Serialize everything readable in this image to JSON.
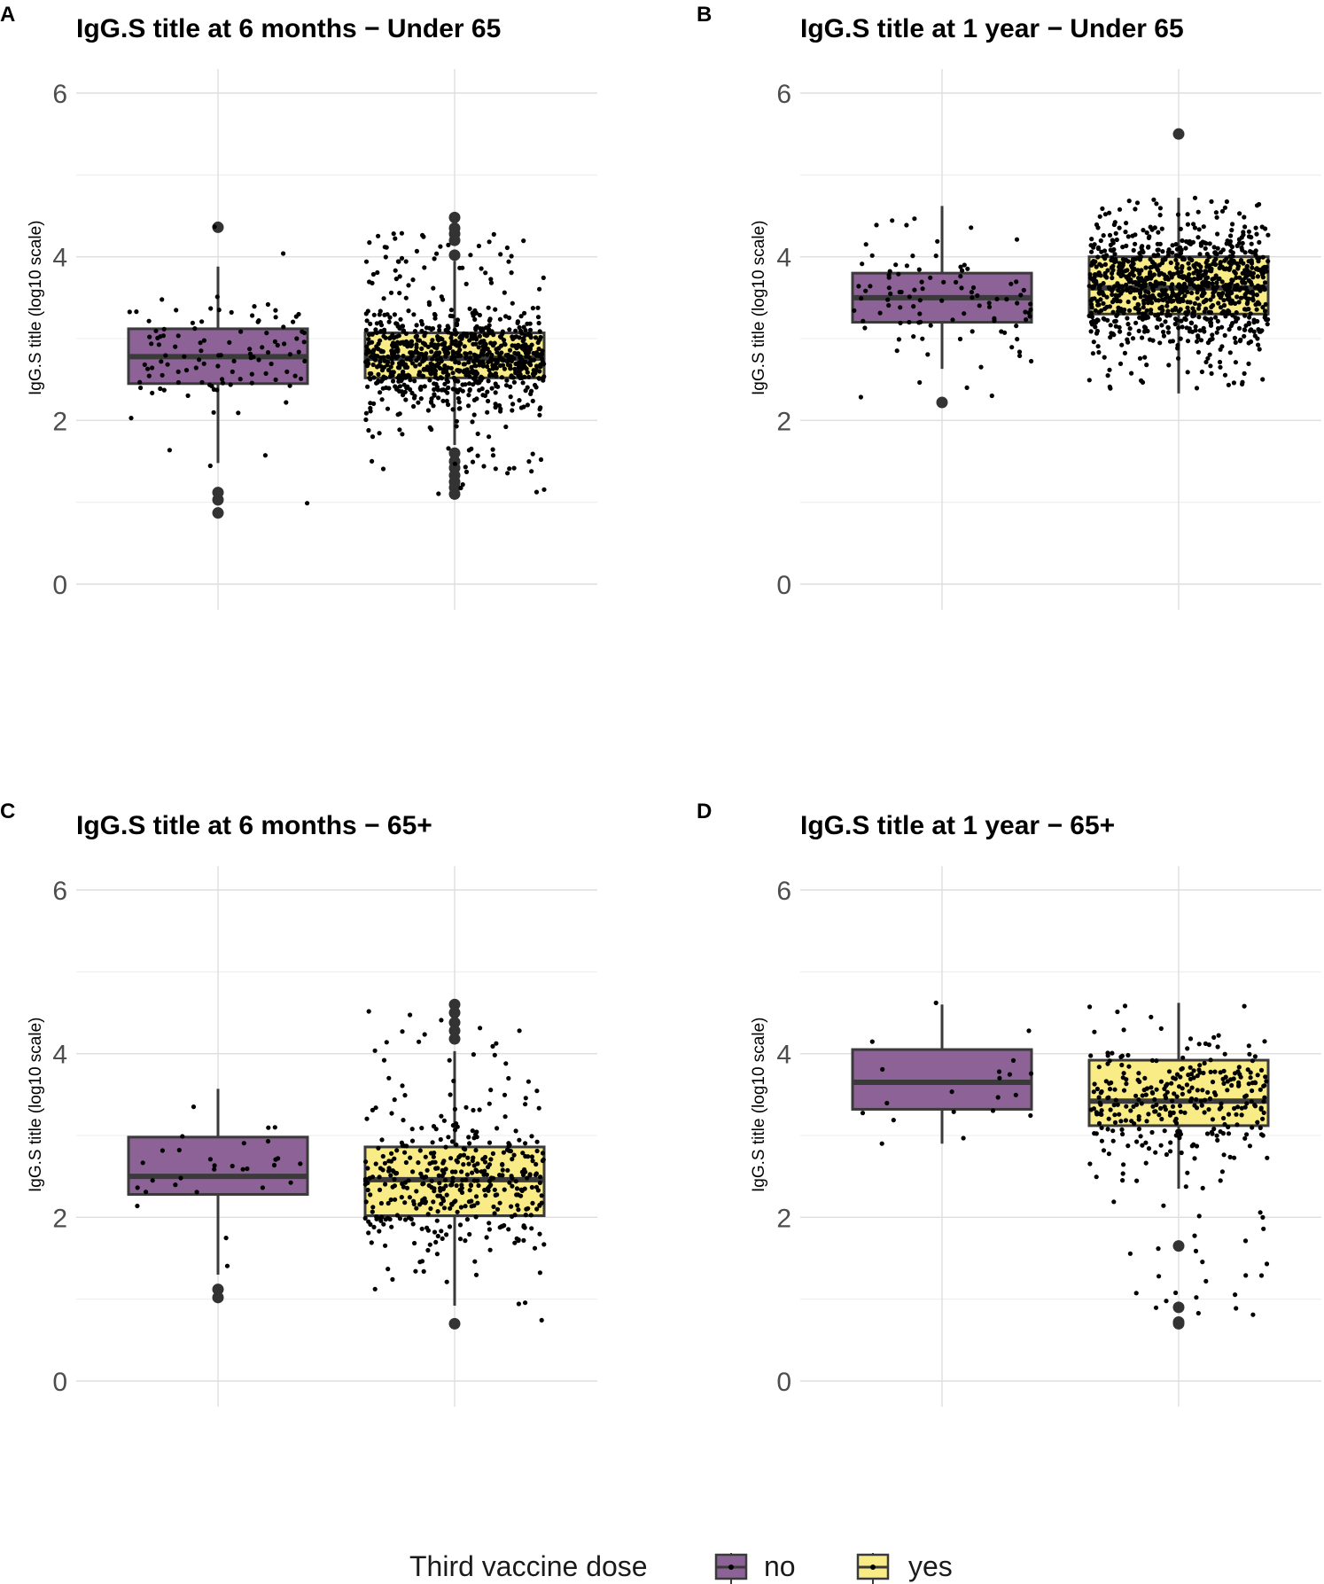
{
  "chart_data": [
    {
      "tag": "A",
      "type": "boxplot",
      "title": "IgG.S title at 6 months − Under 65",
      "xlabel": "",
      "ylabel": "IgG.S title (log10 scale)",
      "ylim": [
        0,
        6.3
      ],
      "yticks": [
        0,
        2,
        4,
        6
      ],
      "ytick_labels": [
        "0",
        "2",
        "4",
        "6"
      ],
      "categories": [
        "no",
        "yes"
      ],
      "boxes": [
        {
          "group": "no",
          "q1": 2.45,
          "median": 2.78,
          "q3": 3.12,
          "whisker_low": 1.48,
          "whisker_high": 3.88,
          "outliers": [
            4.36,
            1.12,
            1.03,
            0.87
          ],
          "n_points": 110,
          "jitter_min": 0.85,
          "jitter_max": 4.37
        },
        {
          "group": "yes",
          "q1": 2.52,
          "median": 2.76,
          "q3": 3.07,
          "whisker_low": 1.7,
          "whisker_high": 3.95,
          "outliers": [
            4.48,
            4.35,
            4.28,
            4.2,
            4.02,
            1.6,
            1.5,
            1.42,
            1.33,
            1.25,
            1.18,
            1.1
          ],
          "n_points": 900,
          "jitter_min": 1.1,
          "jitter_max": 4.3
        }
      ]
    },
    {
      "tag": "B",
      "type": "boxplot",
      "title": "IgG.S title at 1 year − Under 65",
      "xlabel": "",
      "ylabel": "IgG.S title (log10 scale)",
      "ylim": [
        0,
        6.3
      ],
      "yticks": [
        0,
        2,
        4,
        6
      ],
      "ytick_labels": [
        "0",
        "2",
        "4",
        "6"
      ],
      "categories": [
        "no",
        "yes"
      ],
      "boxes": [
        {
          "group": "no",
          "q1": 3.2,
          "median": 3.5,
          "q3": 3.8,
          "whisker_low": 2.63,
          "whisker_high": 4.62,
          "outliers": [
            2.22
          ],
          "n_points": 100,
          "jitter_min": 2.22,
          "jitter_max": 4.62
        },
        {
          "group": "yes",
          "q1": 3.3,
          "median": 3.62,
          "q3": 4.0,
          "whisker_low": 2.33,
          "whisker_high": 4.72,
          "outliers": [
            5.5
          ],
          "n_points": 1000,
          "jitter_min": 2.35,
          "jitter_max": 4.72
        }
      ]
    },
    {
      "tag": "C",
      "type": "boxplot",
      "title": "IgG.S title at 6 months − 65+",
      "xlabel": "",
      "ylabel": "IgG.S title (log10 scale)",
      "ylim": [
        0,
        6.3
      ],
      "yticks": [
        0,
        2,
        4,
        6
      ],
      "ytick_labels": [
        "0",
        "2",
        "4",
        "6"
      ],
      "categories": [
        "no",
        "yes"
      ],
      "boxes": [
        {
          "group": "no",
          "q1": 2.28,
          "median": 2.5,
          "q3": 2.98,
          "whisker_low": 1.3,
          "whisker_high": 3.57,
          "outliers": [
            1.12,
            1.02
          ],
          "n_points": 30,
          "jitter_min": 1.0,
          "jitter_max": 3.57
        },
        {
          "group": "yes",
          "q1": 2.02,
          "median": 2.46,
          "q3": 2.86,
          "whisker_low": 0.92,
          "whisker_high": 4.03,
          "outliers": [
            4.6,
            4.5,
            4.38,
            4.28,
            4.18,
            0.7
          ],
          "n_points": 420,
          "jitter_min": 0.7,
          "jitter_max": 4.6
        }
      ]
    },
    {
      "tag": "D",
      "type": "boxplot",
      "title": "IgG.S title at 1 year − 65+",
      "xlabel": "",
      "ylabel": "IgG.S title (log10 scale)",
      "ylim": [
        0,
        6.3
      ],
      "yticks": [
        0,
        2,
        4,
        6
      ],
      "ytick_labels": [
        "0",
        "2",
        "4",
        "6"
      ],
      "categories": [
        "no",
        "yes"
      ],
      "boxes": [
        {
          "group": "no",
          "q1": 3.32,
          "median": 3.65,
          "q3": 4.05,
          "whisker_low": 2.9,
          "whisker_high": 4.6,
          "outliers": [],
          "n_points": 20,
          "jitter_min": 2.9,
          "jitter_max": 4.62
        },
        {
          "group": "yes",
          "q1": 3.12,
          "median": 3.42,
          "q3": 3.92,
          "whisker_low": 2.35,
          "whisker_high": 4.62,
          "outliers": [
            1.65,
            0.9,
            0.72,
            0.7
          ],
          "n_points": 330,
          "jitter_min": 0.72,
          "jitter_max": 4.62
        }
      ]
    }
  ],
  "legend": {
    "title": "Third vaccine dose",
    "items": [
      {
        "label": "no",
        "color": "#8c6297"
      },
      {
        "label": "yes",
        "color": "#f9ec86"
      }
    ],
    "position": "bottom"
  },
  "style": {
    "no_fill": "#8c6297",
    "yes_fill": "#f9ec86",
    "box_stroke": "#3a3a3a",
    "point_color": "#000000",
    "outlier_color": "#333333"
  }
}
